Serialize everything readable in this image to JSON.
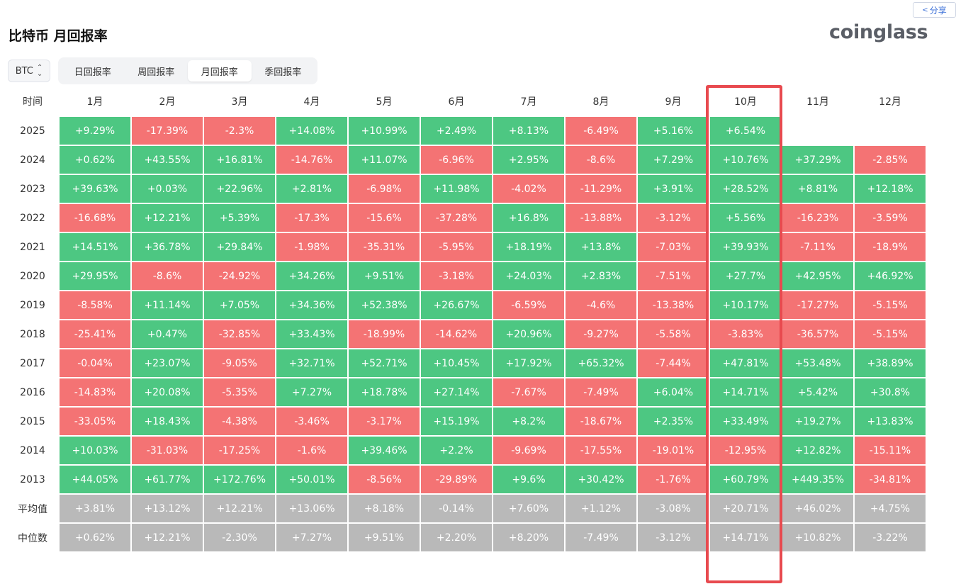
{
  "header": {
    "title": "比特币 月回报率",
    "logo": "coinglass",
    "share_label": "分享",
    "share_icon": "share-icon"
  },
  "controls": {
    "coin": "BTC",
    "tabs": [
      {
        "label": "日回报率",
        "active": false
      },
      {
        "label": "周回报率",
        "active": false
      },
      {
        "label": "月回报率",
        "active": true
      },
      {
        "label": "季回报率",
        "active": false
      }
    ]
  },
  "colors": {
    "positive": "#4dc782",
    "negative": "#f47374",
    "summary": "#b9b9b9",
    "highlight": "#e84a4f"
  },
  "table": {
    "time_header": "时间",
    "months": [
      "1月",
      "2月",
      "3月",
      "4月",
      "5月",
      "6月",
      "7月",
      "8月",
      "9月",
      "10月",
      "11月",
      "12月"
    ],
    "highlighted_month": "10月",
    "rows": [
      {
        "label": "2025",
        "values": [
          "+9.29%",
          "-17.39%",
          "-2.3%",
          "+14.08%",
          "+10.99%",
          "+2.49%",
          "+8.13%",
          "-6.49%",
          "+5.16%",
          "+6.54%",
          "",
          ""
        ]
      },
      {
        "label": "2024",
        "values": [
          "+0.62%",
          "+43.55%",
          "+16.81%",
          "-14.76%",
          "+11.07%",
          "-6.96%",
          "+2.95%",
          "-8.6%",
          "+7.29%",
          "+10.76%",
          "+37.29%",
          "-2.85%"
        ]
      },
      {
        "label": "2023",
        "values": [
          "+39.63%",
          "+0.03%",
          "+22.96%",
          "+2.81%",
          "-6.98%",
          "+11.98%",
          "-4.02%",
          "-11.29%",
          "+3.91%",
          "+28.52%",
          "+8.81%",
          "+12.18%"
        ]
      },
      {
        "label": "2022",
        "values": [
          "-16.68%",
          "+12.21%",
          "+5.39%",
          "-17.3%",
          "-15.6%",
          "-37.28%",
          "+16.8%",
          "-13.88%",
          "-3.12%",
          "+5.56%",
          "-16.23%",
          "-3.59%"
        ]
      },
      {
        "label": "2021",
        "values": [
          "+14.51%",
          "+36.78%",
          "+29.84%",
          "-1.98%",
          "-35.31%",
          "-5.95%",
          "+18.19%",
          "+13.8%",
          "-7.03%",
          "+39.93%",
          "-7.11%",
          "-18.9%"
        ]
      },
      {
        "label": "2020",
        "values": [
          "+29.95%",
          "-8.6%",
          "-24.92%",
          "+34.26%",
          "+9.51%",
          "-3.18%",
          "+24.03%",
          "+2.83%",
          "-7.51%",
          "+27.7%",
          "+42.95%",
          "+46.92%"
        ]
      },
      {
        "label": "2019",
        "values": [
          "-8.58%",
          "+11.14%",
          "+7.05%",
          "+34.36%",
          "+52.38%",
          "+26.67%",
          "-6.59%",
          "-4.6%",
          "-13.38%",
          "+10.17%",
          "-17.27%",
          "-5.15%"
        ]
      },
      {
        "label": "2018",
        "values": [
          "-25.41%",
          "+0.47%",
          "-32.85%",
          "+33.43%",
          "-18.99%",
          "-14.62%",
          "+20.96%",
          "-9.27%",
          "-5.58%",
          "-3.83%",
          "-36.57%",
          "-5.15%"
        ]
      },
      {
        "label": "2017",
        "values": [
          "-0.04%",
          "+23.07%",
          "-9.05%",
          "+32.71%",
          "+52.71%",
          "+10.45%",
          "+17.92%",
          "+65.32%",
          "-7.44%",
          "+47.81%",
          "+53.48%",
          "+38.89%"
        ]
      },
      {
        "label": "2016",
        "values": [
          "-14.83%",
          "+20.08%",
          "-5.35%",
          "+7.27%",
          "+18.78%",
          "+27.14%",
          "-7.67%",
          "-7.49%",
          "+6.04%",
          "+14.71%",
          "+5.42%",
          "+30.8%"
        ]
      },
      {
        "label": "2015",
        "values": [
          "-33.05%",
          "+18.43%",
          "-4.38%",
          "-3.46%",
          "-3.17%",
          "+15.19%",
          "+8.2%",
          "-18.67%",
          "+2.35%",
          "+33.49%",
          "+19.27%",
          "+13.83%"
        ]
      },
      {
        "label": "2014",
        "values": [
          "+10.03%",
          "-31.03%",
          "-17.25%",
          "-1.6%",
          "+39.46%",
          "+2.2%",
          "-9.69%",
          "-17.55%",
          "-19.01%",
          "-12.95%",
          "+12.82%",
          "-15.11%"
        ]
      },
      {
        "label": "2013",
        "values": [
          "+44.05%",
          "+61.77%",
          "+172.76%",
          "+50.01%",
          "-8.56%",
          "-29.89%",
          "+9.6%",
          "+30.42%",
          "-1.76%",
          "+60.79%",
          "+449.35%",
          "-34.81%"
        ]
      }
    ],
    "summary_rows": [
      {
        "label": "平均值",
        "values": [
          "+3.81%",
          "+13.12%",
          "+12.21%",
          "+13.06%",
          "+8.18%",
          "-0.14%",
          "+7.60%",
          "+1.12%",
          "-3.08%",
          "+20.71%",
          "+46.02%",
          "+4.75%"
        ]
      },
      {
        "label": "中位数",
        "values": [
          "+0.62%",
          "+12.21%",
          "-2.30%",
          "+7.27%",
          "+9.51%",
          "+2.20%",
          "+8.20%",
          "-7.49%",
          "-3.12%",
          "+14.71%",
          "+10.82%",
          "-3.22%"
        ]
      }
    ]
  }
}
